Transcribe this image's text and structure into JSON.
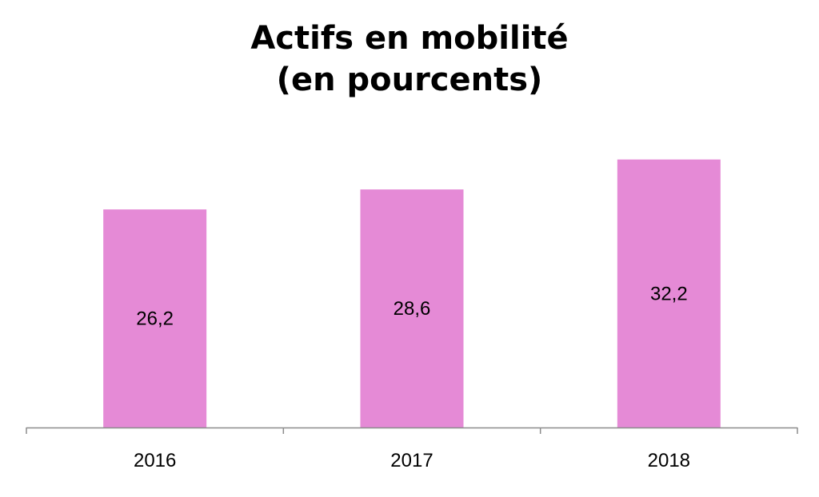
{
  "chart_data": {
    "type": "bar",
    "title_lines": [
      "Actifs en mobilité",
      "(en pourcents)"
    ],
    "categories": [
      "2016",
      "2017",
      "2018"
    ],
    "values": [
      26.2,
      28.6,
      32.2
    ],
    "value_labels": [
      "26,2",
      "28,6",
      "32,2"
    ],
    "xlabel": "",
    "ylabel": "",
    "ylim": [
      0,
      36
    ],
    "grid": false,
    "legend": "none",
    "bar_color": "#E58AD6",
    "axis_color": "#8C8C8C"
  }
}
